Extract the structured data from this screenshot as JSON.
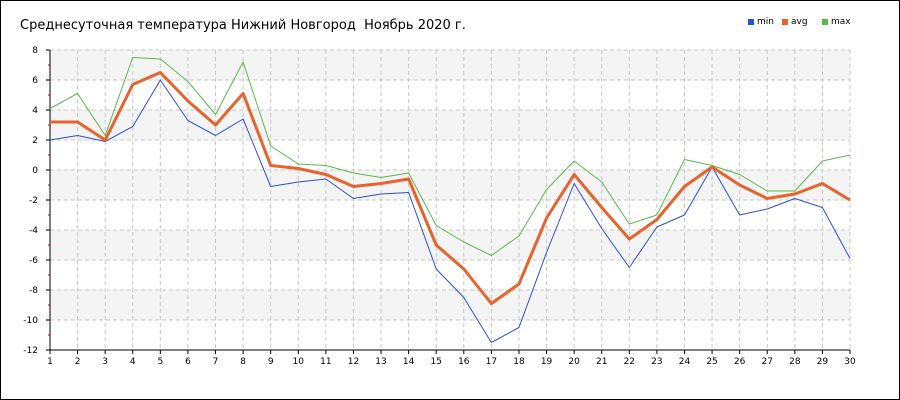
{
  "chart_data": {
    "type": "line",
    "title": "Среднесуточная температура Нижний Новгород  Ноябрь 2020 г.",
    "x": [
      1,
      2,
      3,
      4,
      5,
      6,
      7,
      8,
      9,
      10,
      11,
      12,
      13,
      14,
      15,
      16,
      17,
      18,
      19,
      20,
      21,
      22,
      23,
      24,
      25,
      26,
      27,
      28,
      29,
      30
    ],
    "xlim": [
      1,
      30
    ],
    "ylim": [
      -12,
      8
    ],
    "yticks": [
      -12,
      -10,
      -8,
      -6,
      -4,
      -2,
      0,
      2,
      4,
      6,
      8
    ],
    "grid": true,
    "legend_position": "top-right",
    "series": [
      {
        "name": "min",
        "color": "#2b4fd8",
        "values": [
          2.0,
          2.3,
          1.9,
          2.9,
          6.0,
          3.3,
          2.3,
          3.4,
          -1.1,
          -0.8,
          -0.6,
          -1.9,
          -1.6,
          -1.5,
          -6.6,
          -8.5,
          -11.5,
          -10.5,
          -5.5,
          -0.9,
          -3.9,
          -6.5,
          -3.8,
          -3.0,
          0.2,
          -3.0,
          -2.6,
          -1.9,
          -2.5,
          -5.9
        ]
      },
      {
        "name": "avg",
        "color": "#e8632c",
        "values": [
          3.2,
          3.2,
          2.0,
          5.7,
          6.5,
          4.6,
          3.0,
          5.1,
          0.3,
          0.1,
          -0.3,
          -1.1,
          -0.9,
          -0.6,
          -5.0,
          -6.6,
          -8.9,
          -7.6,
          -3.2,
          -0.3,
          -2.5,
          -4.6,
          -3.3,
          -1.1,
          0.2,
          -1.0,
          -1.9,
          -1.6,
          -0.9,
          -2.0
        ]
      },
      {
        "name": "max",
        "color": "#5cb84a",
        "values": [
          4.1,
          5.1,
          2.3,
          7.5,
          7.4,
          5.9,
          3.7,
          7.2,
          1.6,
          0.4,
          0.3,
          -0.2,
          -0.5,
          -0.2,
          -3.7,
          -4.8,
          -5.7,
          -4.4,
          -1.3,
          0.6,
          -0.8,
          -3.6,
          -3.0,
          0.7,
          0.3,
          -0.3,
          -1.4,
          -1.4,
          0.6,
          1.0
        ]
      }
    ]
  }
}
